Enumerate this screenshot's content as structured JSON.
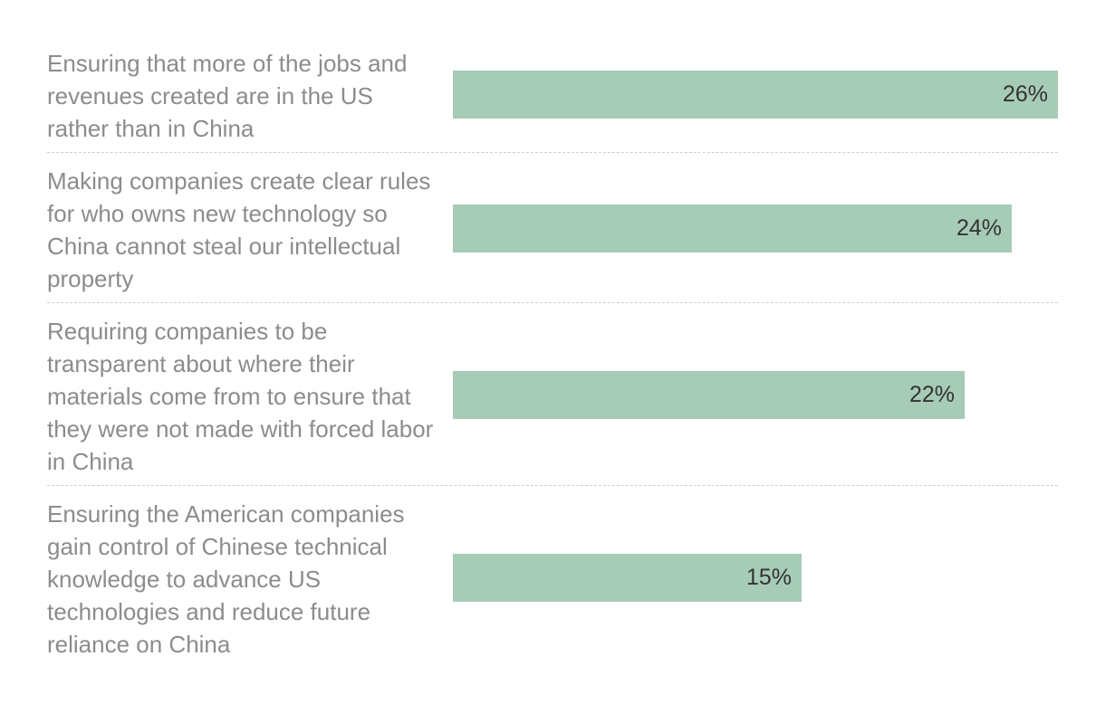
{
  "chart_data": {
    "type": "bar",
    "orientation": "horizontal",
    "title": "",
    "xlabel": "",
    "ylabel": "",
    "xlim": [
      0,
      26
    ],
    "grid": false,
    "legend": "none",
    "bar_color": "#a6cbb6",
    "categories": [
      "Ensuring that more of the jobs and revenues created are in the US rather than in China",
      "Making companies create clear rules for who owns new technology so China cannot steal our intellectual property",
      "Requiring companies to be transparent about where their materials come from to ensure that they were not made with forced labor in China",
      "Ensuring the American companies gain control of Chinese technical knowledge to advance US technologies and reduce future reliance on China"
    ],
    "values": [
      26,
      24,
      22,
      15
    ],
    "value_labels": [
      "26%",
      "24%",
      "22%",
      "15%"
    ]
  }
}
